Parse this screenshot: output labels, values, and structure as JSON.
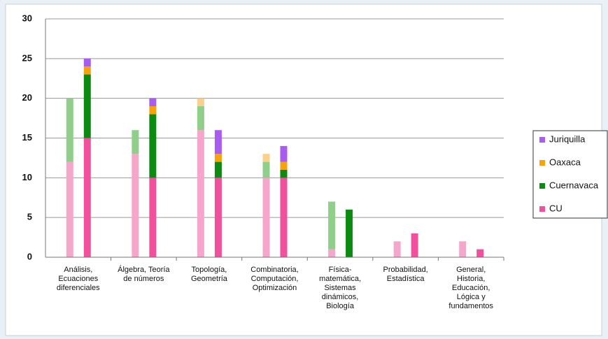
{
  "chart_data": {
    "type": "bar",
    "categories": [
      [
        "Análisis,",
        "Ecuaciones",
        "diferenciales"
      ],
      [
        "Álgebra, Teoría",
        "de números"
      ],
      [
        "Topología,",
        "Geometría"
      ],
      [
        "Combinatoria,",
        "Computación,",
        "Optimización"
      ],
      [
        "Física-",
        "matemática,",
        "Sistemas",
        "dinámicos,",
        "Biología"
      ],
      [
        "Probabilidad,",
        "Estadística"
      ],
      [
        "General,",
        "Historia,",
        "Educación,",
        "Lógica y",
        "fundamentos"
      ]
    ],
    "stacks": [
      {
        "series": [
          {
            "color": "#f7a6cb",
            "values": [
              12,
              13,
              16,
              10,
              1,
              2,
              2
            ]
          },
          {
            "color": "#8fcf8a",
            "values": [
              8,
              3,
              3,
              2,
              6,
              0,
              0
            ]
          },
          {
            "color": "#fbcf8c",
            "values": [
              0,
              0,
              1,
              1,
              0,
              0,
              0
            ]
          }
        ]
      },
      {
        "series": [
          {
            "name": "CU",
            "color": "#f0509c",
            "values": [
              15,
              10,
              10,
              10,
              0,
              3,
              1
            ]
          },
          {
            "name": "Cuernavaca",
            "color": "#0c8a12",
            "values": [
              8,
              8,
              2,
              1,
              6,
              0,
              0
            ]
          },
          {
            "name": "Oaxaca",
            "color": "#f8a20c",
            "values": [
              1,
              1,
              1,
              1,
              0,
              0,
              0
            ]
          },
          {
            "name": "Juriquilla",
            "color": "#a95df0",
            "values": [
              1,
              1,
              3,
              2,
              0,
              0,
              0
            ]
          }
        ]
      }
    ],
    "ylim": [
      0,
      30
    ],
    "yticks": [
      0,
      5,
      10,
      15,
      20,
      25,
      30
    ],
    "grid": true
  }
}
